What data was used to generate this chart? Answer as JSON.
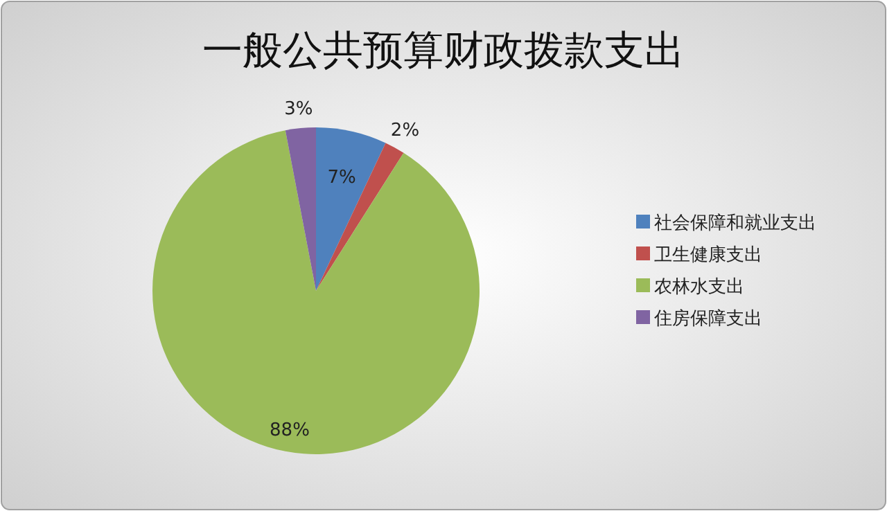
{
  "chart_data": {
    "type": "pie",
    "title": "一般公共预算财政拨款支出",
    "categories": [
      "社会保障和就业支出",
      "卫生健康支出",
      "农林水支出",
      "住房保障支出"
    ],
    "values": [
      7,
      2,
      88,
      3
    ],
    "colors": [
      "#4f81bd",
      "#c0504d",
      "#9bbb59",
      "#8064a2"
    ],
    "value_labels": [
      "7%",
      "2%",
      "88%",
      "3%"
    ],
    "legend": "right"
  }
}
